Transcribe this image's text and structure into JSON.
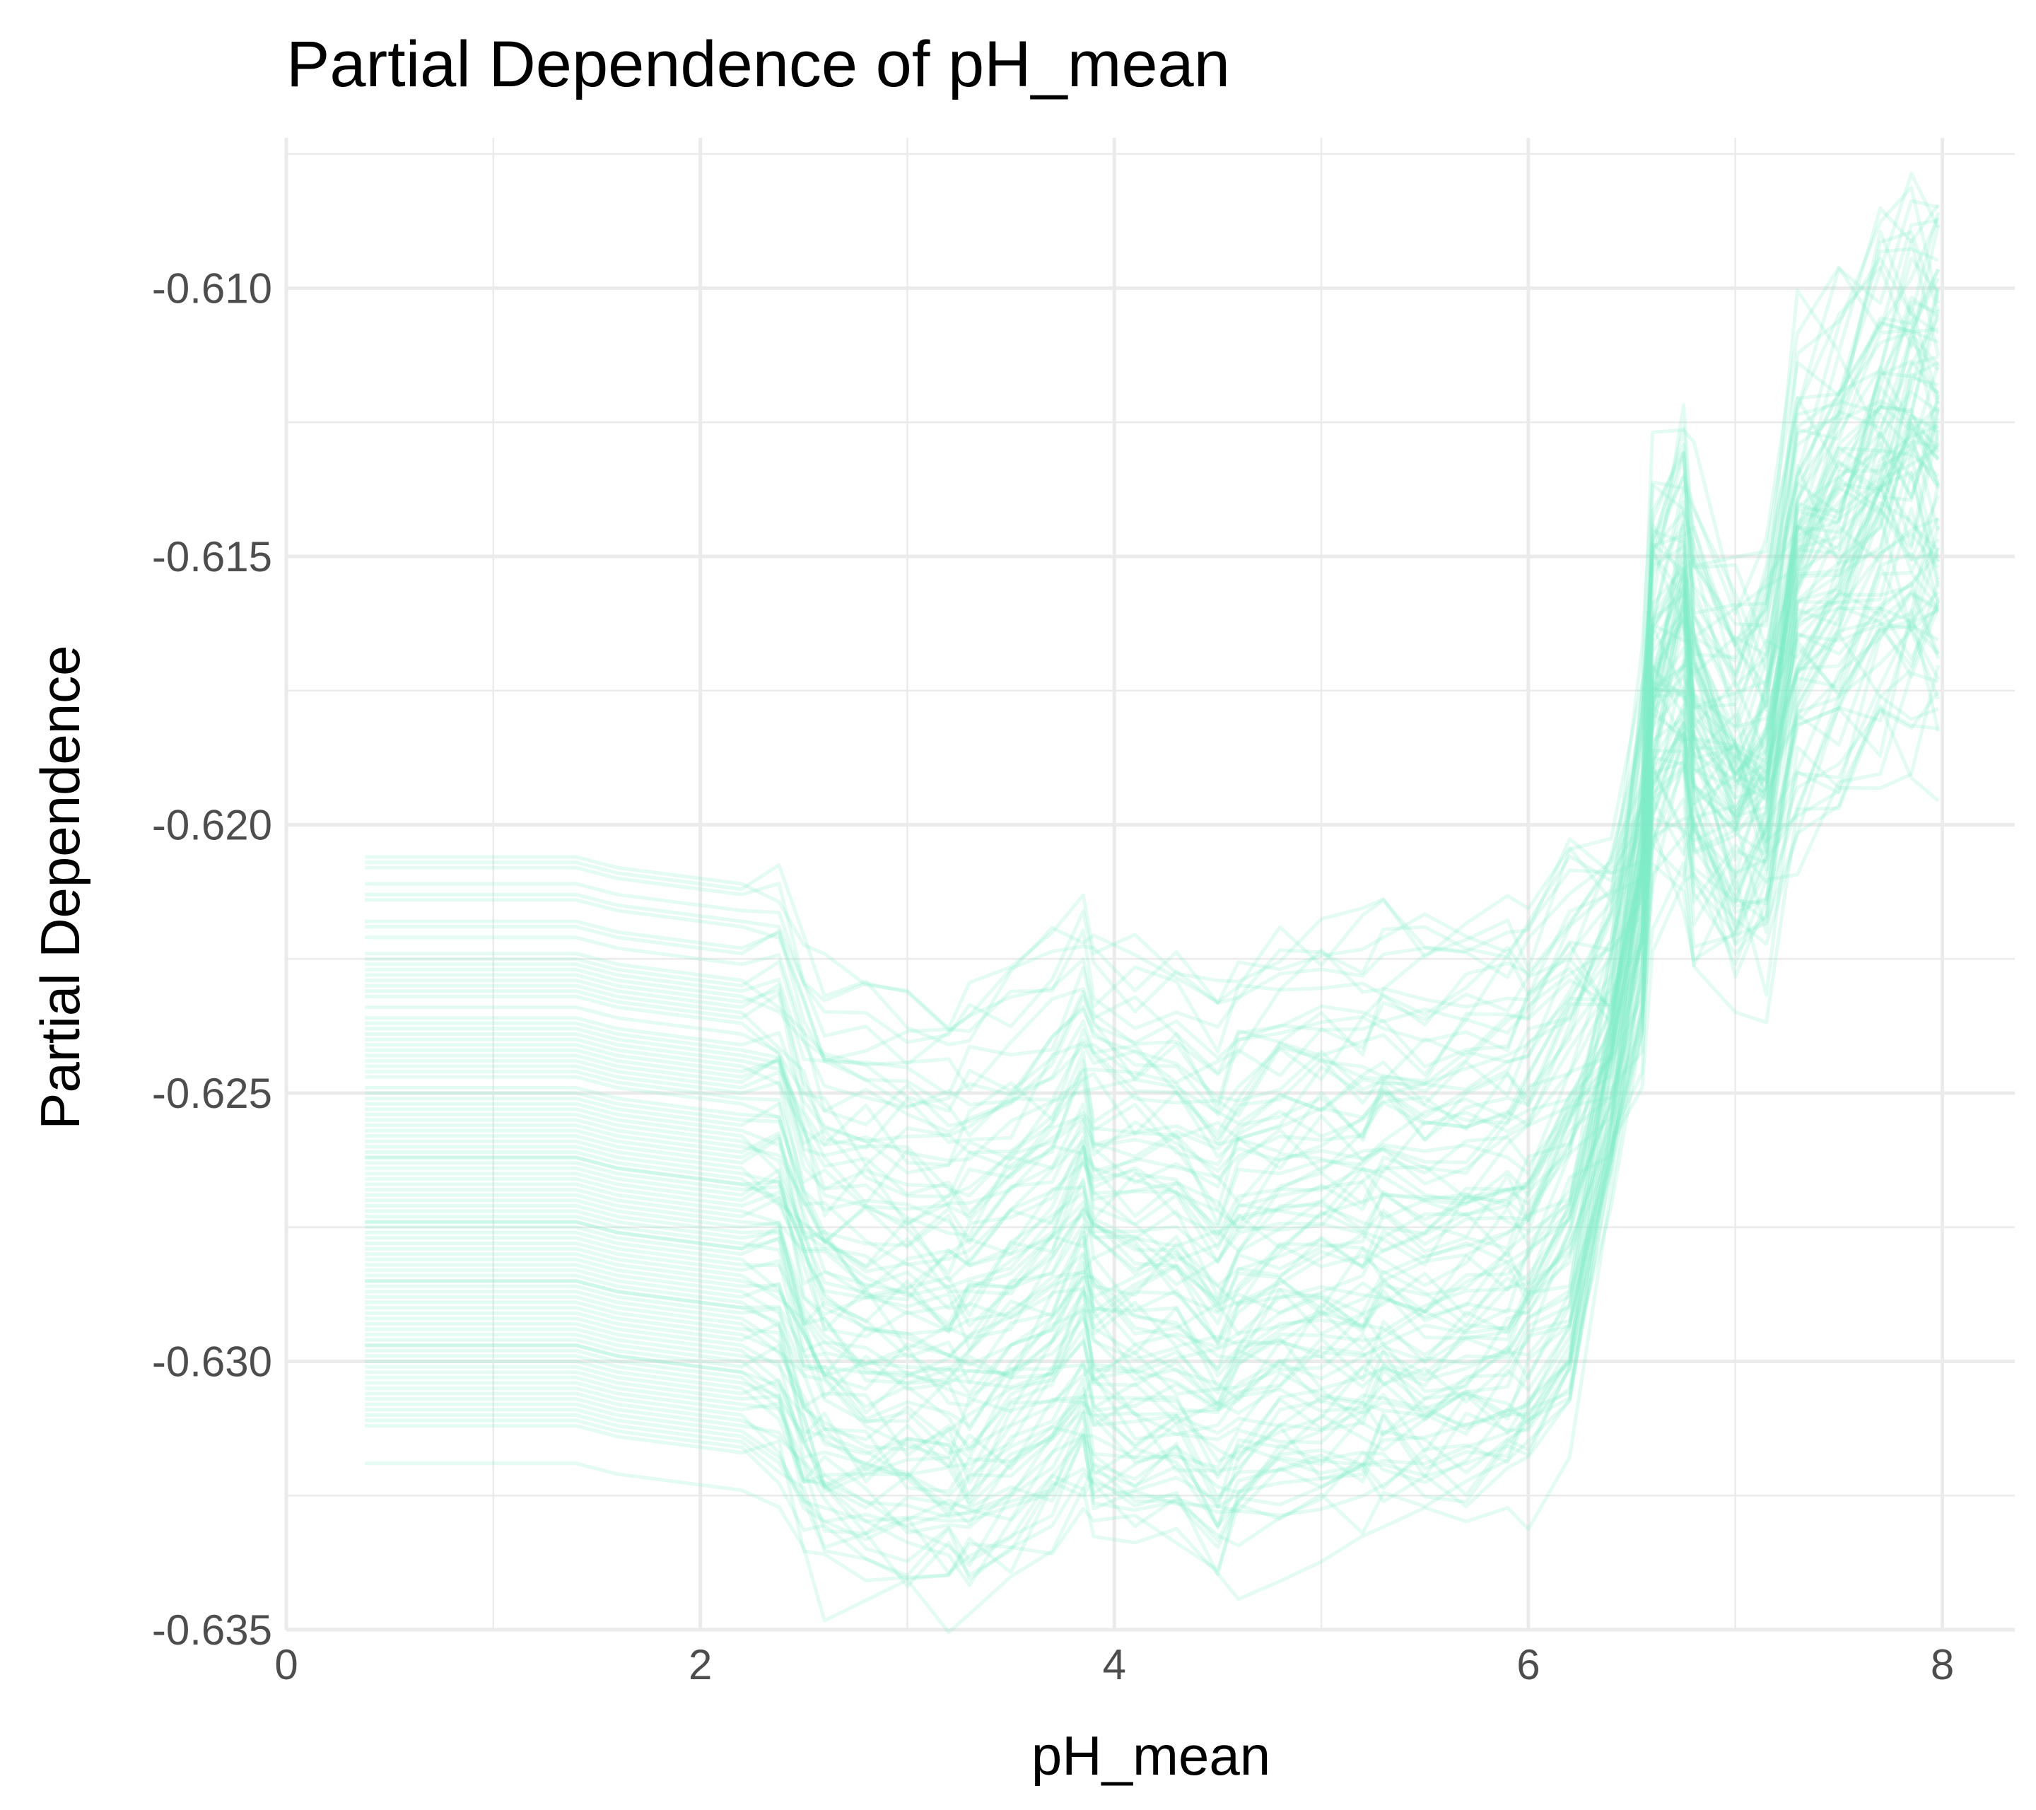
{
  "chart_data": {
    "type": "line",
    "title": "Partial Dependence of pH_mean",
    "xlabel": "pH_mean",
    "ylabel": "Partial Dependence",
    "xlim": [
      0,
      8.35
    ],
    "ylim": [
      -0.635,
      -0.6072
    ],
    "x_major_ticks": [
      0,
      2,
      4,
      6,
      8
    ],
    "x_tick_labels": [
      "0",
      "2",
      "4",
      "6",
      "8"
    ],
    "x_minor_ticks": [
      1,
      3,
      5,
      7
    ],
    "y_major_ticks": [
      -0.635,
      -0.63,
      -0.625,
      -0.62,
      -0.615,
      -0.61
    ],
    "y_tick_labels": [
      "-0.635",
      "-0.630",
      "-0.625",
      "-0.620",
      "-0.615",
      "-0.610"
    ],
    "y_minor_ticks": [
      -0.6325,
      -0.6275,
      -0.6225,
      -0.6175,
      -0.6125,
      -0.6075
    ],
    "grid": true,
    "legend": "none",
    "line_color": "#7fedc8",
    "line_opacity": 0.22,
    "series_count": 100,
    "x": [
      0.38,
      0.6,
      0.8,
      1.0,
      1.2,
      1.4,
      1.6,
      1.8,
      2.0,
      2.2,
      2.38,
      2.5,
      2.6,
      2.8,
      3.0,
      3.2,
      3.3,
      3.5,
      3.7,
      3.85,
      3.9,
      4.1,
      4.3,
      4.5,
      4.6,
      4.8,
      5.0,
      5.2,
      5.3,
      5.5,
      5.7,
      5.9,
      6.0,
      6.2,
      6.4,
      6.55,
      6.6,
      6.75,
      6.8,
      7.0,
      7.15,
      7.3,
      7.5,
      7.7,
      7.85,
      7.98
    ],
    "base_profile": [
      0,
      0,
      0,
      0,
      0,
      0,
      -0.0002,
      -0.0003,
      -0.0004,
      -0.0005,
      -0.0006,
      -0.0018,
      -0.0024,
      -0.0026,
      -0.0027,
      -0.0028,
      -0.0028,
      -0.0023,
      -0.0018,
      -0.001,
      -0.0016,
      -0.0018,
      -0.0018,
      -0.0024,
      -0.002,
      -0.0016,
      -0.0015,
      -0.0014,
      -0.0012,
      -0.0014,
      -0.0012,
      -0.001,
      -0.0008,
      0.0004,
      0.0026,
      0.0055,
      0.0085,
      0.0096,
      0.0082,
      0.0072,
      0.0075,
      0.0105,
      0.0115,
      0.0125,
      0.013,
      0.0128
    ],
    "series_start_y": [
      -0.6206,
      -0.6208,
      -0.6211,
      -0.6214,
      -0.6218,
      -0.6221,
      -0.6225,
      -0.6228,
      -0.6229,
      -0.623,
      -0.6232,
      -0.6234,
      -0.6237,
      -0.6239,
      -0.624,
      -0.6241,
      -0.6243,
      -0.6245,
      -0.6247,
      -0.6249,
      -0.6251,
      -0.6253,
      -0.6254,
      -0.6255,
      -0.6256,
      -0.6258,
      -0.626,
      -0.6262,
      -0.6263,
      -0.6265,
      -0.6267,
      -0.6269,
      -0.627,
      -0.6272,
      -0.6273,
      -0.6275,
      -0.6276,
      -0.6278,
      -0.6279,
      -0.6281,
      -0.6282,
      -0.6284,
      -0.6285,
      -0.6286,
      -0.6288,
      -0.6289,
      -0.629,
      -0.6292,
      -0.6294,
      -0.6296,
      -0.6298,
      -0.63,
      -0.6302,
      -0.6305,
      -0.6308,
      -0.631,
      -0.6312,
      -0.6319,
      -0.6207,
      -0.6213,
      -0.6219,
      -0.6224,
      -0.6227,
      -0.6231,
      -0.6236,
      -0.6238,
      -0.6242,
      -0.6246,
      -0.625,
      -0.6252,
      -0.6257,
      -0.6259,
      -0.6261,
      -0.6264,
      -0.6266,
      -0.6268,
      -0.6271,
      -0.6274,
      -0.6277,
      -0.628,
      -0.6283,
      -0.6287,
      -0.6291,
      -0.6293,
      -0.6295,
      -0.6297,
      -0.6299,
      -0.6301,
      -0.6303,
      -0.6304,
      -0.6306,
      -0.6307,
      -0.6309,
      -0.6311,
      -0.6226,
      -0.6244,
      -0.6262,
      -0.6274,
      -0.6285,
      -0.6297
    ]
  }
}
